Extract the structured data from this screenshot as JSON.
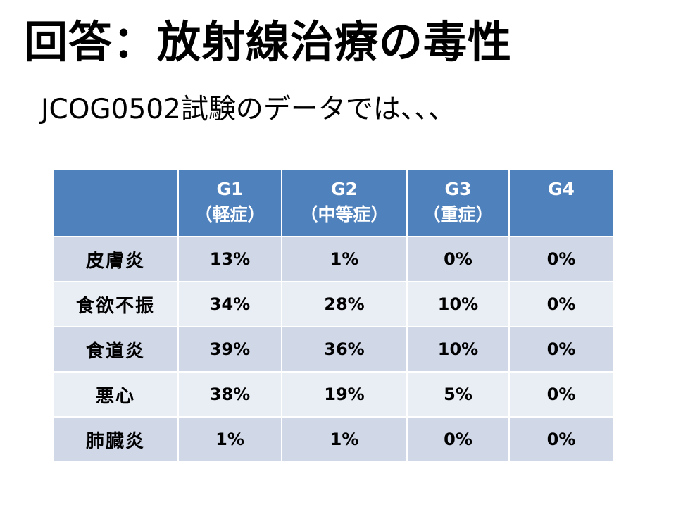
{
  "slide": {
    "title": "回答：放射線治療の毒性",
    "subtitle": "JCOG0502試験のデータでは、、、"
  },
  "table": {
    "corner": "",
    "columns": [
      {
        "grade": "G1",
        "severity": "（軽症）"
      },
      {
        "grade": "G2",
        "severity": "（中等症）"
      },
      {
        "grade": "G3",
        "severity": "（重症）"
      },
      {
        "grade": "G4",
        "severity": ""
      }
    ],
    "rows": [
      {
        "label": "皮膚炎",
        "values": [
          "13%",
          "1%",
          "0%",
          "0%"
        ]
      },
      {
        "label": "食欲不振",
        "values": [
          "34%",
          "28%",
          "10%",
          "0%"
        ]
      },
      {
        "label": "食道炎",
        "values": [
          "39%",
          "36%",
          "10%",
          "0%"
        ]
      },
      {
        "label": "悪心",
        "values": [
          "38%",
          "19%",
          "5%",
          "0%"
        ]
      },
      {
        "label": "肺臓炎",
        "values": [
          "1%",
          "1%",
          "0%",
          "0%"
        ]
      }
    ]
  },
  "colors": {
    "header_bg": "#4f81bd",
    "row_odd_bg": "#d0d8e8",
    "row_even_bg": "#e9edf4"
  }
}
